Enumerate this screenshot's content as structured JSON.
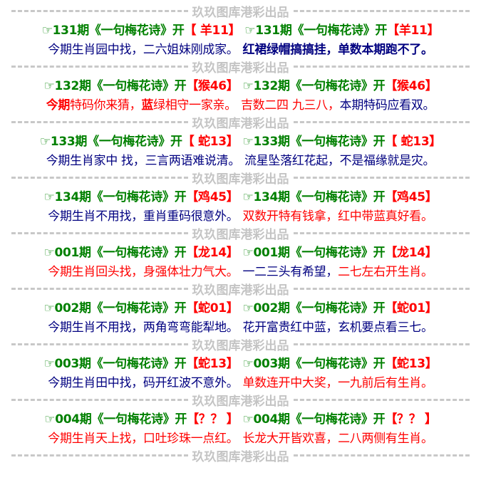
{
  "separator_text": "玖玖图库港彩出品",
  "colors": {
    "green": "#008000",
    "red": "#ff0000",
    "navy": "#000080",
    "separator": "#c4c4c4"
  },
  "icon": "pointing-hand-icon",
  "blocks": [
    {
      "left_head": [
        "☞131期《一句梅花诗》开",
        "【 羊11】"
      ],
      "right_head": [
        "☞131期《一句梅花诗》开",
        "【羊11】"
      ],
      "left": [
        {
          "t": "今期生肖园中找，二六姐妹刚成家。",
          "c": "navy",
          "b": false
        }
      ],
      "right": [
        {
          "t": "红裙绿帽搞搞挂，单数本期跑不了。",
          "c": "navy",
          "b": true
        }
      ]
    },
    {
      "left_head": [
        "☞132期《一句梅花诗》开",
        "【猴46】"
      ],
      "right_head": [
        "☞132期《一句梅花诗》开",
        "【猴46】"
      ],
      "left": [
        {
          "t": "今期",
          "c": "red",
          "b": true
        },
        {
          "t": "特码你来猜，",
          "c": "red",
          "b": false
        },
        {
          "t": "蓝",
          "c": "red",
          "b": true
        },
        {
          "t": "绿相守一家亲。",
          "c": "red",
          "b": false
        }
      ],
      "right": [
        {
          "t": "吉数二四 九三八，",
          "c": "red",
          "b": false
        },
        {
          "t": "本期特码应看双。",
          "c": "navy",
          "b": false
        }
      ]
    },
    {
      "left_head": [
        "☞133期《一句梅花诗》开",
        "【 蛇13】"
      ],
      "right_head": [
        "☞133期《一句梅花诗》开",
        "【 蛇13】"
      ],
      "left": [
        {
          "t": "今期生肖家中 找，三言两语难说清。",
          "c": "navy",
          "b": false
        }
      ],
      "right": [
        {
          "t": "流星坠落红花起，不是福缘就是灾。",
          "c": "navy",
          "b": false
        }
      ]
    },
    {
      "left_head": [
        "☞134期《一句梅花诗》开",
        "【鸡45】"
      ],
      "right_head": [
        "☞134期《一句梅花诗》开",
        "【鸡45】"
      ],
      "left": [
        {
          "t": "今期生肖不用找，重肖重码很意外。",
          "c": "navy",
          "b": false
        }
      ],
      "right": [
        {
          "t": "双数开特有钱拿，红中带蓝真好看。",
          "c": "red",
          "b": false
        }
      ]
    },
    {
      "left_head": [
        "☞001期《一句梅花诗》开",
        "【龙14】"
      ],
      "right_head": [
        "☞001期《一句梅花诗》开",
        "【龙14】"
      ],
      "left": [
        {
          "t": "今期生肖回头找，身强体壮力气大。",
          "c": "red",
          "b": false
        }
      ],
      "right": [
        {
          "t": "一二三头有希望，",
          "c": "navy",
          "b": false
        },
        {
          "t": "二七左右开生肖。",
          "c": "red",
          "b": false
        }
      ]
    },
    {
      "left_head": [
        "☞002期《一句梅花诗》开",
        "【蛇01】"
      ],
      "right_head": [
        "☞002期《一句梅花诗》开",
        "【蛇01】"
      ],
      "left": [
        {
          "t": "今期生肖不用找，两角弯弯能犁地。",
          "c": "navy",
          "b": false
        }
      ],
      "right": [
        {
          "t": "花开富贵红中蓝，玄机要点看三七。",
          "c": "navy",
          "b": false
        }
      ]
    },
    {
      "left_head": [
        "☞003期《一句梅花诗》开",
        "【蛇13】"
      ],
      "right_head": [
        "☞003期《一句梅花诗》开",
        "【蛇13】"
      ],
      "left": [
        {
          "t": "今期生肖田中找，码开红波不意外。",
          "c": "navy",
          "b": false
        }
      ],
      "right": [
        {
          "t": "单数连开中大奖，一九前后有生肖。",
          "c": "red",
          "b": false
        }
      ]
    },
    {
      "left_head": [
        "☞004期《一句梅花诗》开",
        "【？？ 】"
      ],
      "right_head": [
        "☞004期《一句梅花诗》开",
        "【？？ 】"
      ],
      "left": [
        {
          "t": "今期生肖天上找，口吐珍珠一点红。",
          "c": "red",
          "b": false
        }
      ],
      "right": [
        {
          "t": "长龙大开皆欢喜，二八两侧有生肖。",
          "c": "red",
          "b": false
        }
      ]
    }
  ]
}
